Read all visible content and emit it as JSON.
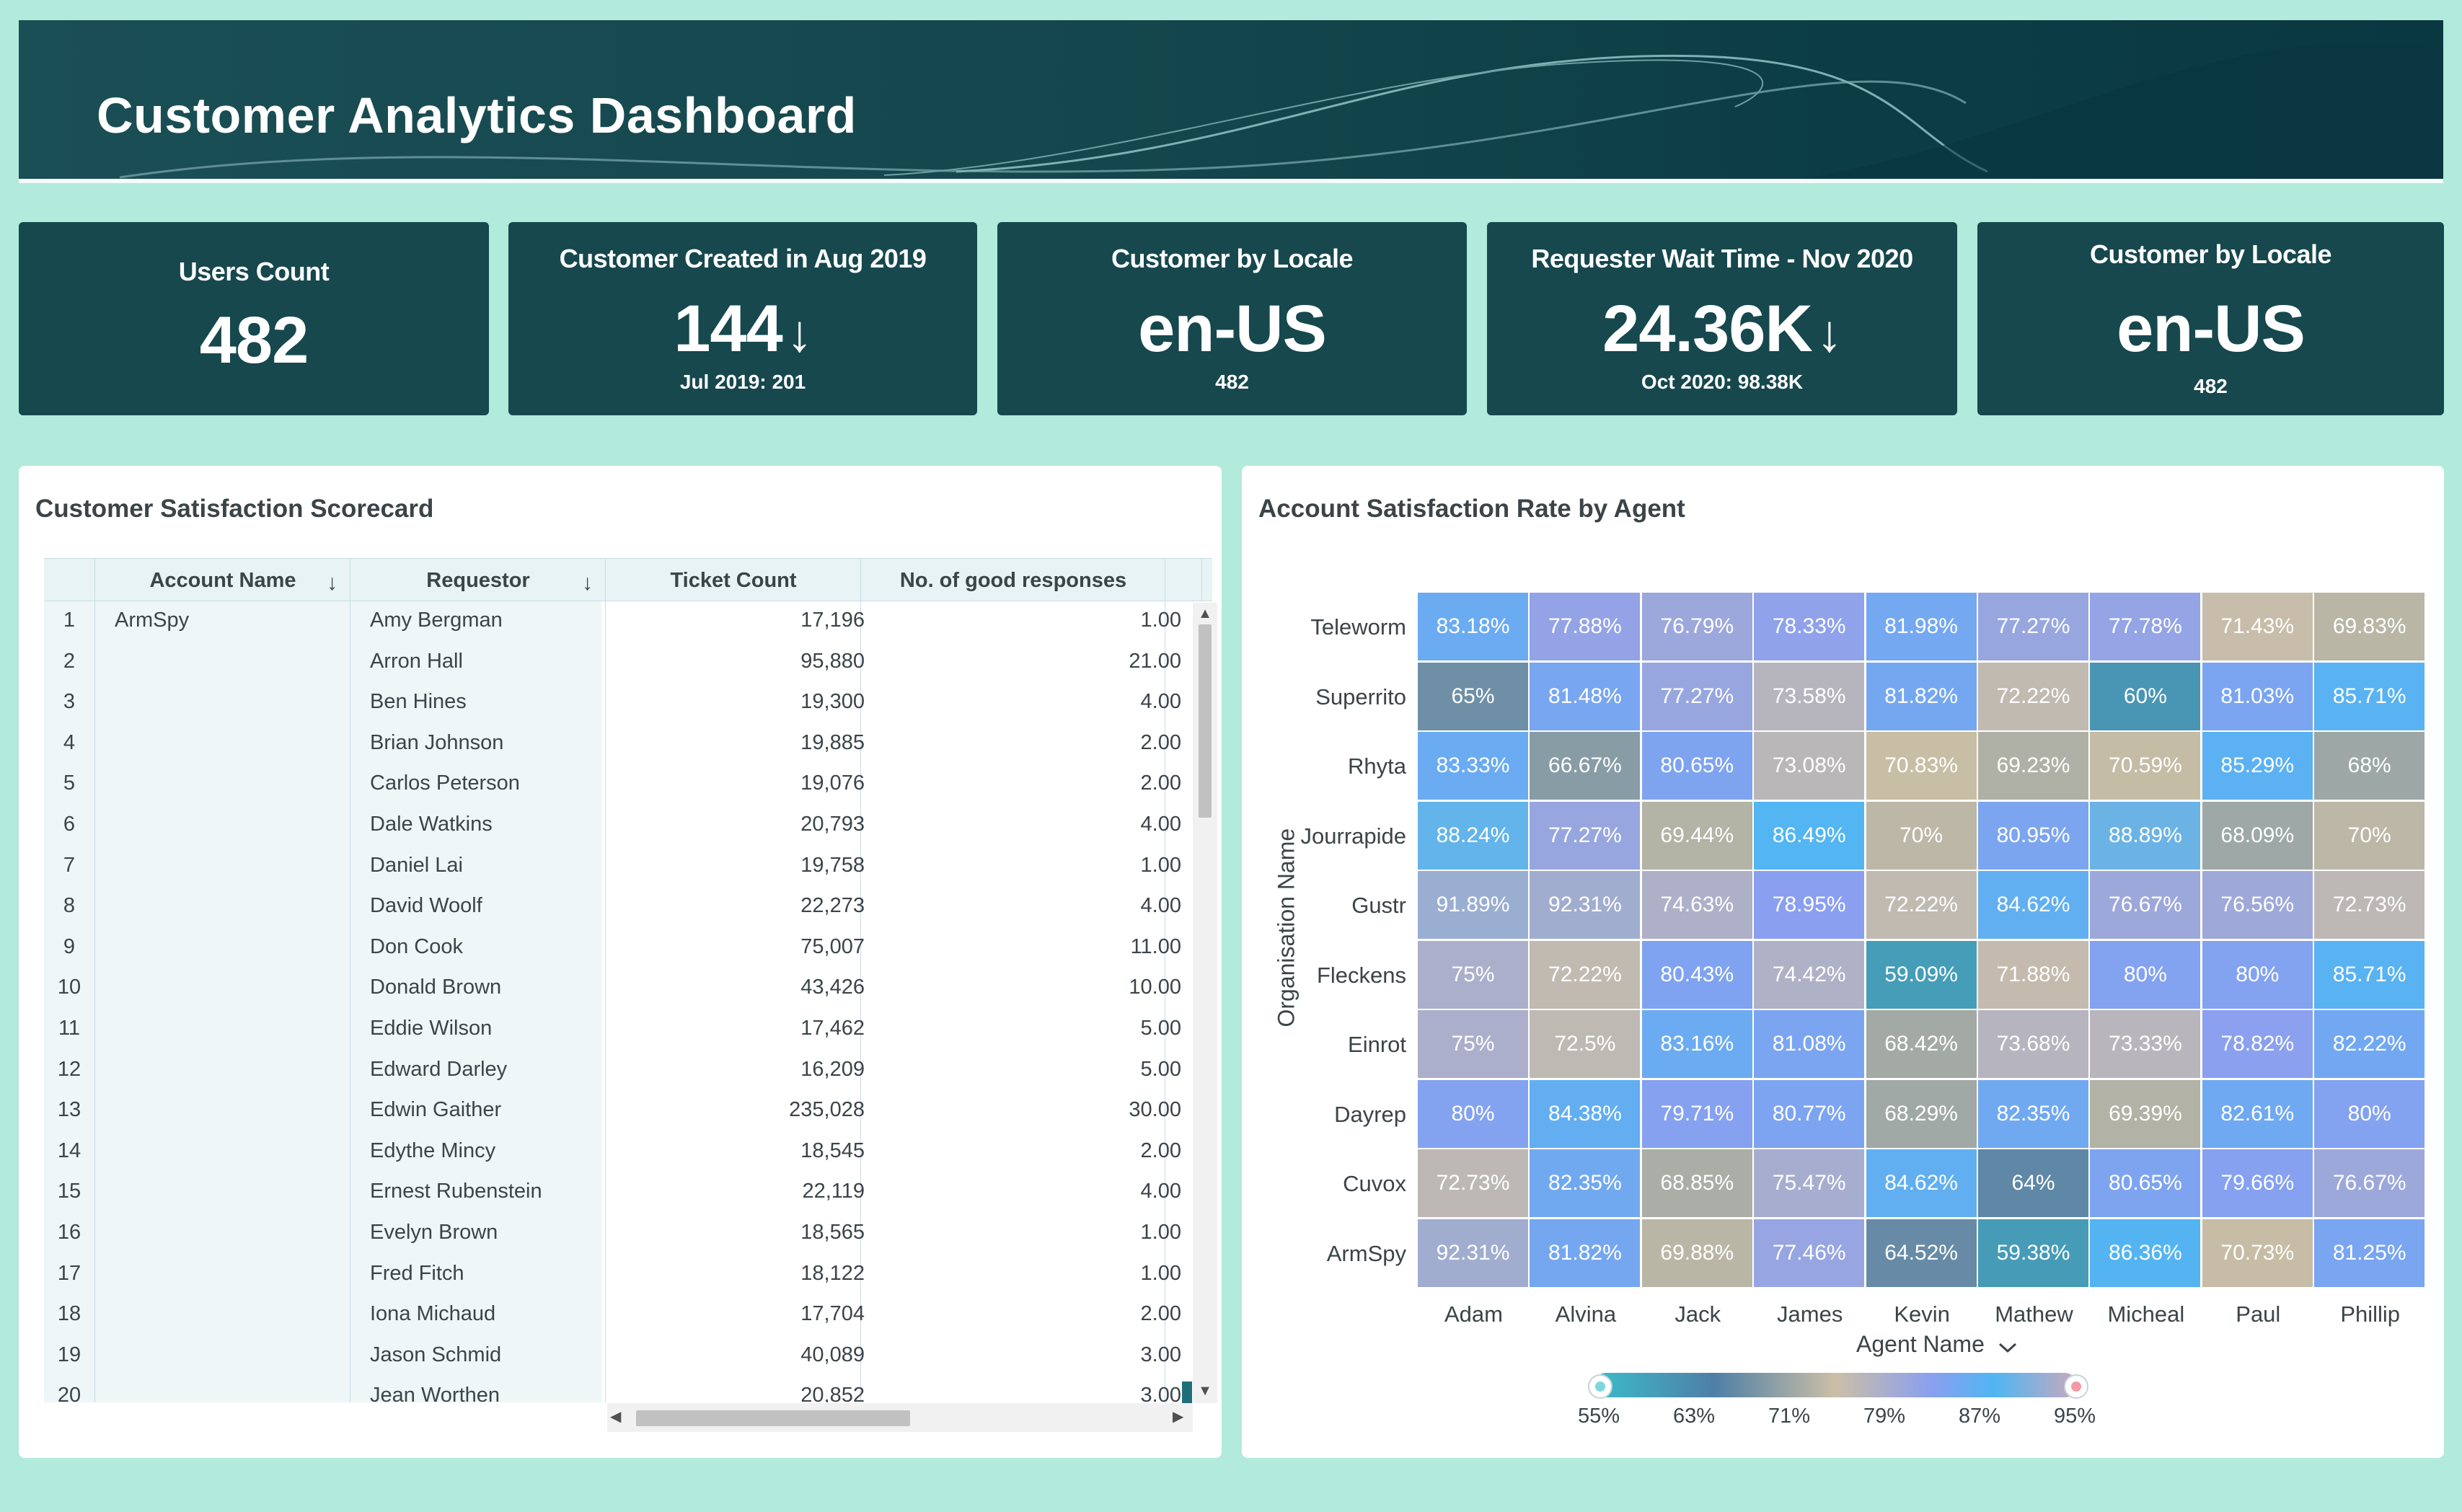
{
  "header": {
    "title": "Customer Analytics Dashboard"
  },
  "kpis": [
    {
      "title": "Users Count",
      "value": "482"
    },
    {
      "title": "Customer Created in Aug 2019",
      "value": "144",
      "trend": "↓",
      "sub": "Jul 2019: 201"
    },
    {
      "title": "Customer by Locale",
      "value": "en-US",
      "sub": "482"
    },
    {
      "title": "Requester Wait Time - Nov 2020",
      "value": "24.36K",
      "trend": "↓",
      "sub": "Oct 2020: 98.38K"
    },
    {
      "title": "Customer by Locale",
      "value": "en-US",
      "sub": "482"
    }
  ],
  "scorecard": {
    "title": "Customer Satisfaction Scorecard",
    "columns": [
      "Account Name",
      "Requestor",
      "Ticket Count",
      "No. of good responses"
    ],
    "sort_icon": "↓",
    "rows": [
      [
        "1",
        "ArmSpy",
        "Amy Bergman",
        "17,196",
        "1.00"
      ],
      [
        "2",
        "",
        "Arron Hall",
        "95,880",
        "21.00"
      ],
      [
        "3",
        "",
        "Ben Hines",
        "19,300",
        "4.00"
      ],
      [
        "4",
        "",
        "Brian Johnson",
        "19,885",
        "2.00"
      ],
      [
        "5",
        "",
        "Carlos Peterson",
        "19,076",
        "2.00"
      ],
      [
        "6",
        "",
        "Dale Watkins",
        "20,793",
        "4.00"
      ],
      [
        "7",
        "",
        "Daniel Lai",
        "19,758",
        "1.00"
      ],
      [
        "8",
        "",
        "David Woolf",
        "22,273",
        "4.00"
      ],
      [
        "9",
        "",
        "Don Cook",
        "75,007",
        "11.00"
      ],
      [
        "10",
        "",
        "Donald Brown",
        "43,426",
        "10.00"
      ],
      [
        "11",
        "",
        "Eddie Wilson",
        "17,462",
        "5.00"
      ],
      [
        "12",
        "",
        "Edward Darley",
        "16,209",
        "5.00"
      ],
      [
        "13",
        "",
        "Edwin Gaither",
        "235,028",
        "30.00"
      ],
      [
        "14",
        "",
        "Edythe Mincy",
        "18,545",
        "2.00"
      ],
      [
        "15",
        "",
        "Ernest Rubenstein",
        "22,119",
        "4.00"
      ],
      [
        "16",
        "",
        "Evelyn Brown",
        "18,565",
        "1.00"
      ],
      [
        "17",
        "",
        "Fred Fitch",
        "18,122",
        "1.00"
      ],
      [
        "18",
        "",
        "Iona Michaud",
        "17,704",
        "2.00"
      ],
      [
        "19",
        "",
        "Jason Schmid",
        "40,089",
        "3.00"
      ],
      [
        "20",
        "",
        "Jean Worthen",
        "20,852",
        "3.00"
      ]
    ]
  },
  "heatmap_panel": {
    "title": "Account Satisfaction Rate by Agent",
    "x_axis_title": "Agent Name",
    "x_axis_icon": "chevron-down-icon",
    "y_axis_title": "Organisation Name",
    "legend_labels": [
      "55%",
      "63%",
      "71%",
      "79%",
      "87%",
      "95%"
    ]
  },
  "chart_data": {
    "type": "heatmap",
    "title": "Account Satisfaction Rate by Agent",
    "xlabel": "Agent Name",
    "ylabel": "Organisation Name",
    "x": [
      "Adam",
      "Alvina",
      "Jack",
      "James",
      "Kevin",
      "Mathew",
      "Micheal",
      "Paul",
      "Phillip"
    ],
    "y": [
      "Teleworm",
      "Superrito",
      "Rhyta",
      "Jourrapide",
      "Gustr",
      "Fleckens",
      "Einrot",
      "Dayrep",
      "Cuvox",
      "ArmSpy"
    ],
    "labels": [
      [
        "83.18%",
        "77.88%",
        "76.79%",
        "78.33%",
        "81.98%",
        "77.27%",
        "77.78%",
        "71.43%",
        "69.83%"
      ],
      [
        "65%",
        "81.48%",
        "77.27%",
        "73.58%",
        "81.82%",
        "72.22%",
        "60%",
        "81.03%",
        "85.71%"
      ],
      [
        "83.33%",
        "66.67%",
        "80.65%",
        "73.08%",
        "70.83%",
        "69.23%",
        "70.59%",
        "85.29%",
        "68%"
      ],
      [
        "88.24%",
        "77.27%",
        "69.44%",
        "86.49%",
        "70%",
        "80.95%",
        "88.89%",
        "68.09%",
        "70%"
      ],
      [
        "91.89%",
        "92.31%",
        "74.63%",
        "78.95%",
        "72.22%",
        "84.62%",
        "76.67%",
        "76.56%",
        "72.73%"
      ],
      [
        "75%",
        "72.22%",
        "80.43%",
        "74.42%",
        "59.09%",
        "71.88%",
        "80%",
        "80%",
        "85.71%"
      ],
      [
        "75%",
        "72.5%",
        "83.16%",
        "81.08%",
        "68.42%",
        "73.68%",
        "73.33%",
        "78.82%",
        "82.22%"
      ],
      [
        "80%",
        "84.38%",
        "79.71%",
        "80.77%",
        "68.29%",
        "82.35%",
        "69.39%",
        "82.61%",
        "80%"
      ],
      [
        "72.73%",
        "82.35%",
        "68.85%",
        "75.47%",
        "84.62%",
        "64%",
        "80.65%",
        "79.66%",
        "76.67%"
      ],
      [
        "92.31%",
        "81.82%",
        "69.88%",
        "77.46%",
        "64.52%",
        "59.38%",
        "86.36%",
        "70.73%",
        "81.25%"
      ]
    ],
    "values": [
      [
        83.18,
        77.88,
        76.79,
        78.33,
        81.98,
        77.27,
        77.78,
        71.43,
        69.83
      ],
      [
        65,
        81.48,
        77.27,
        73.58,
        81.82,
        72.22,
        60,
        81.03,
        85.71
      ],
      [
        83.33,
        66.67,
        80.65,
        73.08,
        70.83,
        69.23,
        70.59,
        85.29,
        68
      ],
      [
        88.24,
        77.27,
        69.44,
        86.49,
        70,
        80.95,
        88.89,
        68.09,
        70
      ],
      [
        91.89,
        92.31,
        74.63,
        78.95,
        72.22,
        84.62,
        76.67,
        76.56,
        72.73
      ],
      [
        75,
        72.22,
        80.43,
        74.42,
        59.09,
        71.88,
        80,
        80,
        85.71
      ],
      [
        75,
        72.5,
        83.16,
        81.08,
        68.42,
        73.68,
        73.33,
        78.82,
        82.22
      ],
      [
        80,
        84.38,
        79.71,
        80.77,
        68.29,
        82.35,
        69.39,
        82.61,
        80
      ],
      [
        72.73,
        82.35,
        68.85,
        75.47,
        84.62,
        64,
        80.65,
        79.66,
        76.67
      ],
      [
        92.31,
        81.82,
        69.88,
        77.46,
        64.52,
        59.38,
        86.36,
        70.73,
        81.25
      ]
    ],
    "color_range": [
      55,
      95
    ],
    "color_stops": [
      "#3bbccb",
      "#4f7fa6",
      "#cbbfa6",
      "#8a9ff0",
      "#4fb6f2",
      "#c9a9bd"
    ]
  },
  "colors": {
    "page_background": "#b2eadb",
    "banner": "#14474d",
    "kpi_card": "#16484e",
    "panel": "#ffffff"
  }
}
